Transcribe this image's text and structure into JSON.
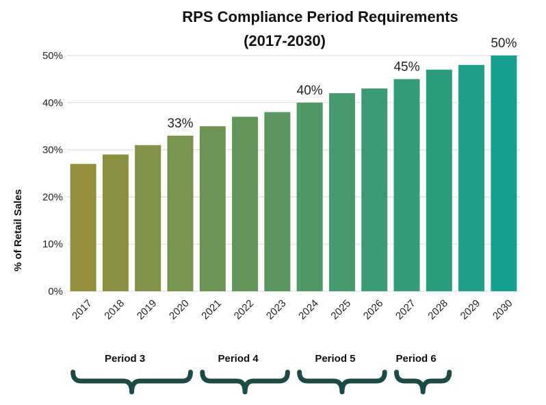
{
  "chart_data": {
    "type": "bar",
    "title": "RPS Compliance Period Requirements",
    "subtitle": "(2017-2030)",
    "xlabel": "",
    "ylabel": "% of Retail Sales",
    "ylim": [
      0,
      50
    ],
    "yticks": [
      "0%",
      "10%",
      "20%",
      "30%",
      "40%",
      "50%"
    ],
    "grid": true,
    "categories": [
      "2017",
      "2018",
      "2019",
      "2020",
      "2021",
      "2022",
      "2023",
      "2024",
      "2025",
      "2026",
      "2027",
      "2028",
      "2029",
      "2030"
    ],
    "values": [
      27,
      29,
      31,
      33,
      35,
      37,
      38,
      40,
      42,
      43,
      45,
      47,
      48,
      50
    ],
    "data_labels": [
      {
        "category": "2020",
        "text": "33%"
      },
      {
        "category": "2024",
        "text": "40%"
      },
      {
        "category": "2027",
        "text": "45%"
      },
      {
        "category": "2030",
        "text": "50%"
      }
    ],
    "color_start": "#948f3a",
    "color_end": "#17a08e",
    "periods": [
      {
        "label": "Period 3",
        "from": "2017",
        "to": "2020"
      },
      {
        "label": "Period 4",
        "from": "2021",
        "to": "2023"
      },
      {
        "label": "Period 5",
        "from": "2024",
        "to": "2026"
      },
      {
        "label": "Period 6",
        "from": "2027",
        "to": "2028"
      }
    ],
    "brace_color": "#1c4a47"
  }
}
